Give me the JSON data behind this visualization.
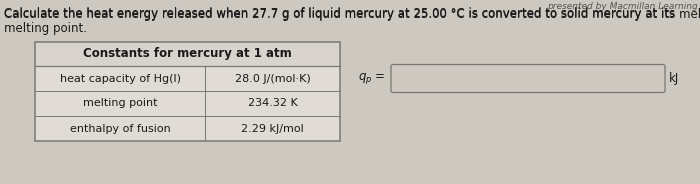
{
  "title_line1": "Calculate the heat energy released when 27.7 g of liquid mercury at 25.00 °C is converted to solid mercury at its melting point.",
  "watermark": "presented by Macmillan Learning",
  "table_title": "Constants for mercury at 1 atm",
  "table_rows": [
    [
      "heat capacity of Hg(l)",
      "28.0 J/(mol·K)"
    ],
    [
      "melting point",
      "234.32 K"
    ],
    [
      "enthalpy of fusion",
      "2.29 kJ/mol"
    ]
  ],
  "input_unit": "kJ",
  "bg_color": "#cdc8c0",
  "table_bg": "#e0dbd5",
  "header_bg": "#d8d3cc",
  "border_color": "#7a7870",
  "text_color": "#1a1a1a",
  "title_fontsize": 8.5,
  "table_fontsize": 8.5,
  "input_box_color": "#cfc9c2",
  "watermark_color": "#555550"
}
